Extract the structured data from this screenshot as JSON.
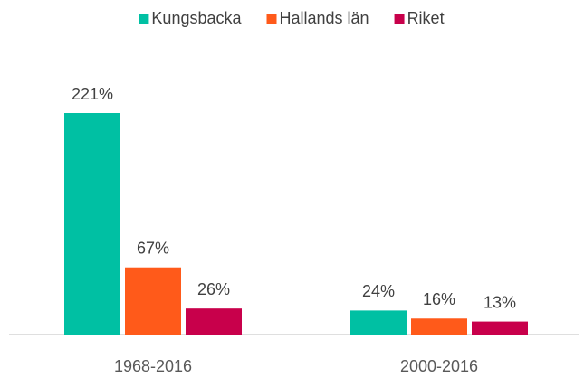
{
  "chart_data": {
    "type": "bar",
    "categories": [
      "1968-2016",
      "2000-2016"
    ],
    "series": [
      {
        "name": "Kungsbacka",
        "color": "#00c0a3",
        "values": [
          221,
          24
        ],
        "value_labels": [
          "221%",
          "24%"
        ]
      },
      {
        "name": "Hallands län",
        "color": "#ff5a1a",
        "values": [
          67,
          16
        ],
        "value_labels": [
          "67%",
          "16%"
        ]
      },
      {
        "name": "Riket",
        "color": "#c8004b",
        "values": [
          26,
          13
        ],
        "value_labels": [
          "26%",
          "13%"
        ]
      }
    ],
    "legend": "top"
  }
}
